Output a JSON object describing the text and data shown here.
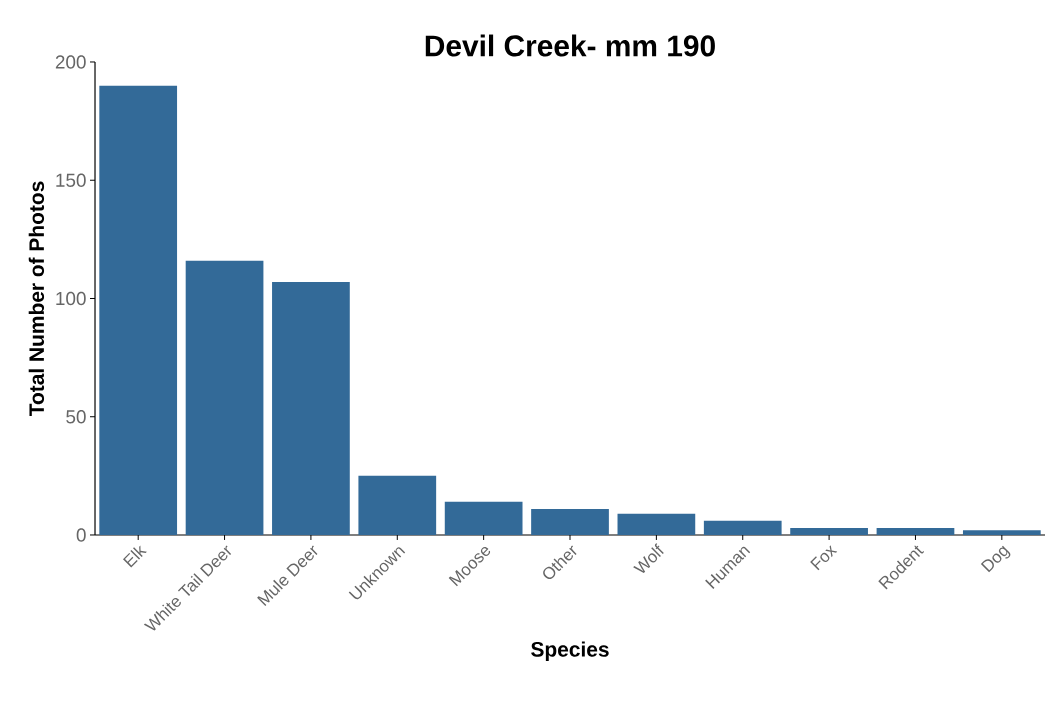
{
  "chart_data": {
    "type": "bar",
    "title": "Devil Creek- mm 190",
    "xlabel": "Species",
    "ylabel": "Total Number of Photos",
    "categories": [
      "Elk",
      "White Tail Deer",
      "Mule Deer",
      "Unknown",
      "Moose",
      "Other",
      "Wolf",
      "Human",
      "Fox",
      "Rodent",
      "Dog"
    ],
    "values": [
      190,
      116,
      107,
      25,
      14,
      11,
      9,
      6,
      3,
      3,
      2
    ],
    "color": "#336a98",
    "ylim": [
      0,
      200
    ],
    "yticks": [
      0,
      50,
      100,
      150,
      200
    ],
    "grid": false
  }
}
